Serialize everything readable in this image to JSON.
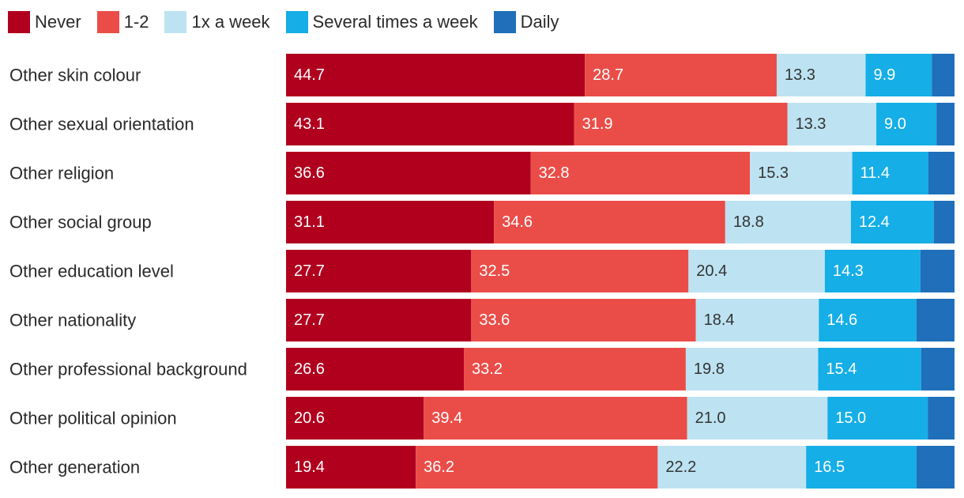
{
  "chart_data": {
    "type": "bar",
    "orientation": "horizontal",
    "stacked": true,
    "categories": [
      "Other skin colour",
      "Other sexual orientation",
      "Other religion",
      "Other social group",
      "Other education level",
      "Other nationality",
      "Other professional background",
      "Other political opinion",
      "Other generation"
    ],
    "series": [
      {
        "name": "Never",
        "color": "#b0001e",
        "label_color": "#ffffff",
        "values": [
          44.7,
          43.1,
          36.6,
          31.1,
          27.7,
          27.7,
          26.6,
          20.6,
          19.4
        ]
      },
      {
        "name": "1-2",
        "color": "#ea4d48",
        "label_color": "#ffffff",
        "values": [
          28.7,
          31.9,
          32.8,
          34.6,
          32.5,
          33.6,
          33.2,
          39.4,
          36.2
        ]
      },
      {
        "name": "1x a week",
        "color": "#bde3f2",
        "label_color": "#333333",
        "values": [
          13.3,
          13.3,
          15.3,
          18.8,
          20.4,
          18.4,
          19.8,
          21.0,
          22.2
        ]
      },
      {
        "name": "Several times a week",
        "color": "#15aee6",
        "label_color": "#ffffff",
        "values": [
          9.9,
          9.0,
          11.4,
          12.4,
          14.3,
          14.6,
          15.4,
          15.0,
          16.5
        ]
      },
      {
        "name": "Daily",
        "color": "#1f6fba",
        "label_color": "#ffffff",
        "values": [
          3.4,
          2.7,
          3.9,
          3.1,
          5.1,
          5.7,
          5.0,
          4.0,
          5.7
        ]
      }
    ],
    "show_labels_for": [
      "Never",
      "1-2",
      "1x a week",
      "Several times a week"
    ],
    "label_decimals": 1,
    "xlim": [
      0,
      100
    ],
    "legend_position": "top-left",
    "grid": false,
    "title": "",
    "xlabel": "",
    "ylabel": ""
  }
}
